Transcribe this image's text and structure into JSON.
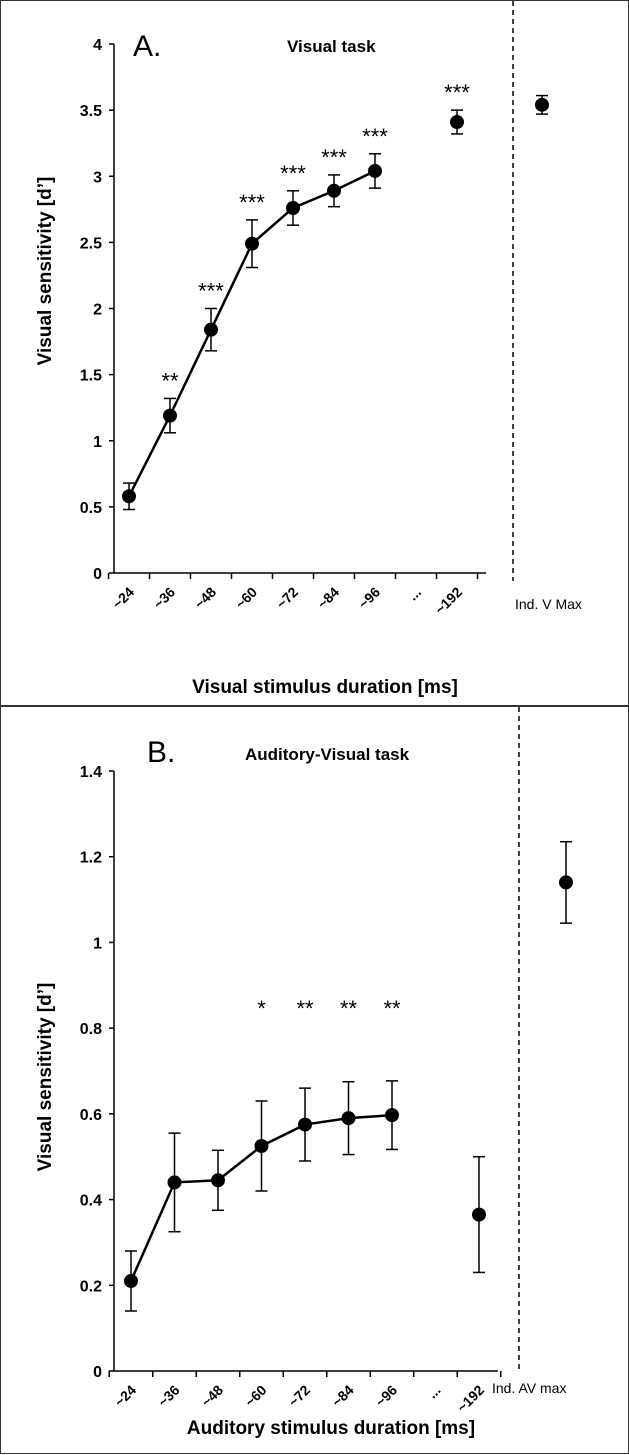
{
  "chart_data": [
    {
      "type": "line",
      "panel_letter": "A.",
      "title": "Visual task",
      "xlabel": "Visual stimulus duration [ms]",
      "ylabel": "Visual sensitivity [d’]",
      "ylim": [
        0,
        4
      ],
      "yticks": [
        "0",
        "0.5",
        "1",
        "1.5",
        "2",
        "2.5",
        "3",
        "3.5",
        "4"
      ],
      "categories": [
        "~24",
        "~36",
        "~48",
        "~60",
        "~72",
        "~84",
        "~96",
        "...",
        "~192"
      ],
      "values": [
        0.58,
        1.19,
        1.84,
        2.49,
        2.76,
        2.89,
        3.04,
        null,
        3.41
      ],
      "errors": [
        0.1,
        0.13,
        0.16,
        0.18,
        0.13,
        0.12,
        0.13,
        null,
        0.09
      ],
      "significance": [
        "",
        "**",
        "***",
        "***",
        "***",
        "***",
        "***",
        "",
        "***"
      ],
      "reference": {
        "label": "Ind. V Max",
        "value": 3.54,
        "error": 0.07
      }
    },
    {
      "type": "line",
      "panel_letter": "B.",
      "title": "Auditory-Visual task",
      "xlabel": "Auditory stimulus duration [ms]",
      "ylabel": "Visual sensitivity [d’]",
      "ylim": [
        0,
        1.4
      ],
      "yticks": [
        "0",
        "0.2",
        "0.4",
        "0.6",
        "0.8",
        "1",
        "1.2",
        "1.4"
      ],
      "categories": [
        "~24",
        "~36",
        "~48",
        "~60",
        "~72",
        "~84",
        "~96",
        "...",
        "~192"
      ],
      "values": [
        0.21,
        0.44,
        0.445,
        0.525,
        0.575,
        0.59,
        0.597,
        null,
        0.365
      ],
      "errors": [
        0.07,
        0.115,
        0.07,
        0.105,
        0.085,
        0.085,
        0.08,
        null,
        0.135
      ],
      "significance": [
        "",
        "",
        "",
        "*",
        "**",
        "**",
        "**",
        "",
        ""
      ],
      "reference": {
        "label": "Ind. AV max",
        "value": 1.14,
        "error": 0.095
      }
    }
  ]
}
